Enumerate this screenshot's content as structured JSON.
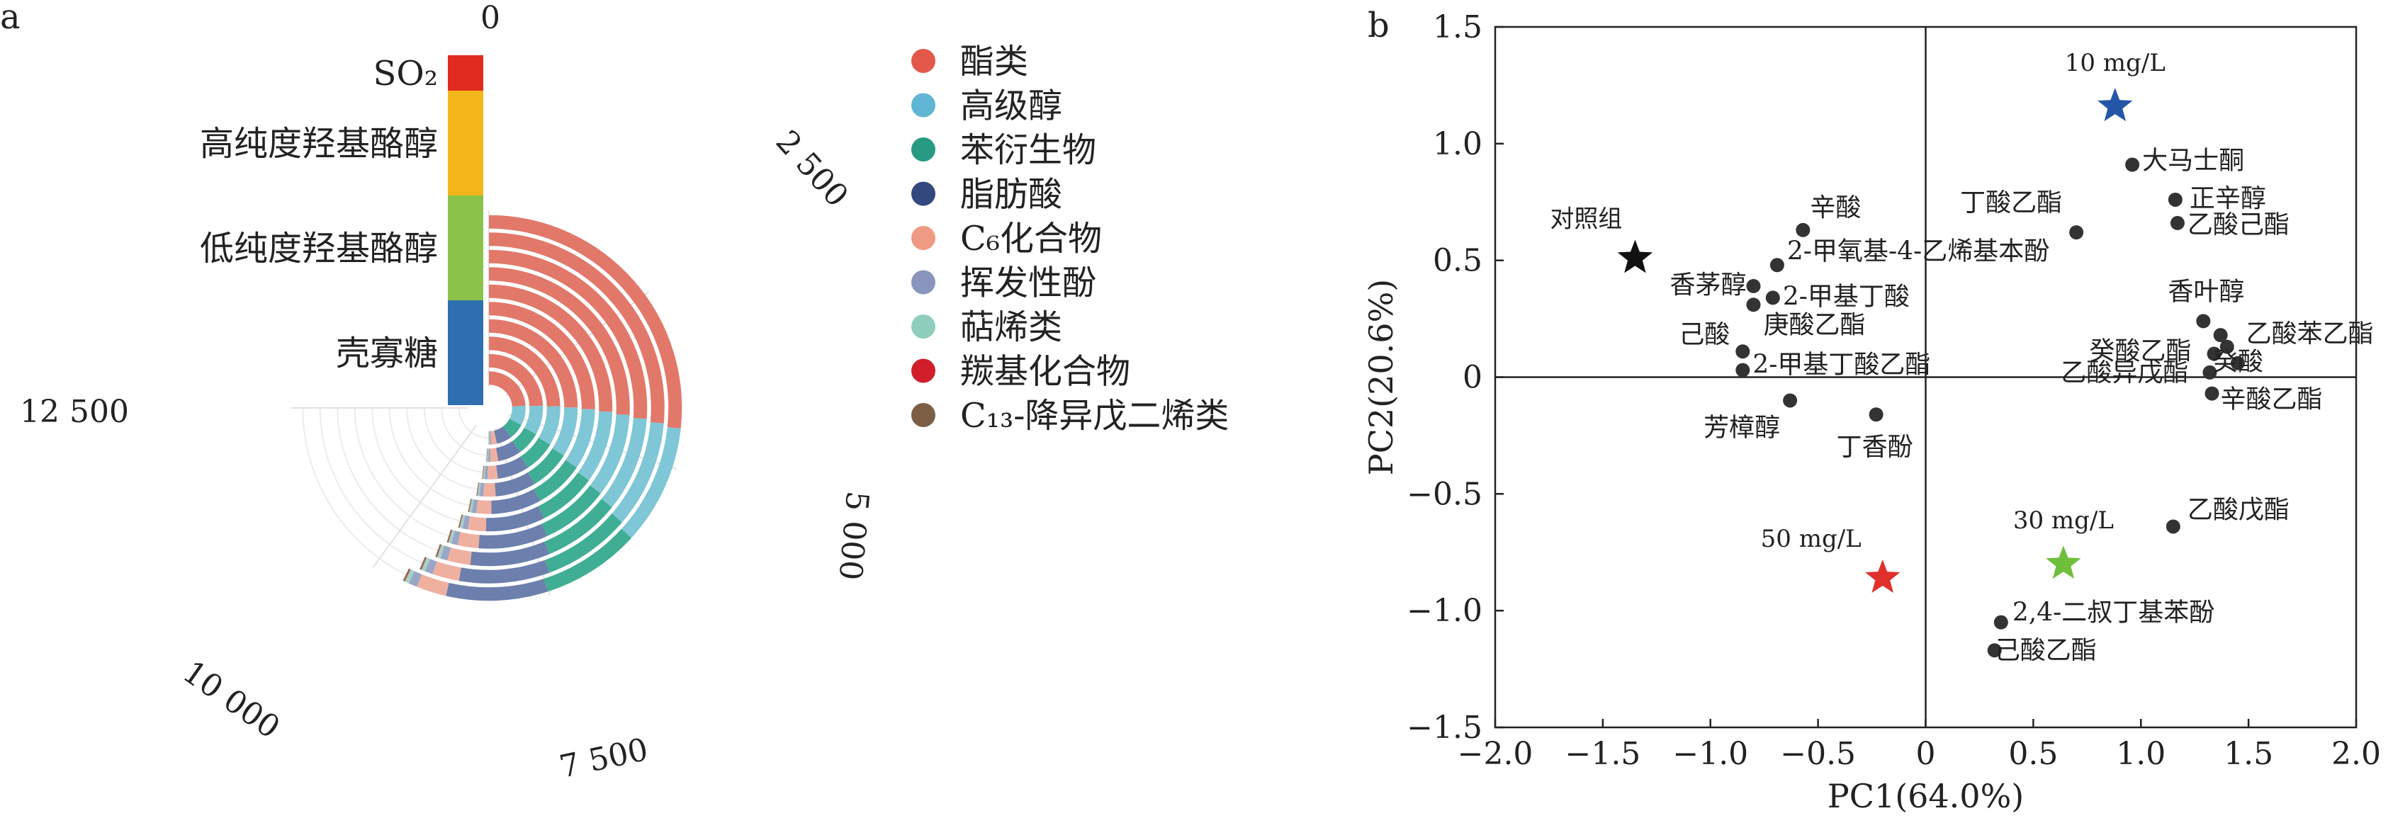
{
  "panels": {
    "a": "a",
    "b": "b"
  },
  "chart_data": [
    {
      "type": "bar",
      "subtype": "radial-stacked-bar",
      "title": "",
      "radial_ticks": [
        "0",
        "2 500",
        "5 000",
        "7 500",
        "10 000",
        "12 500"
      ],
      "value_range": [
        0,
        12500
      ],
      "groups": [
        {
          "name": "SO₂",
          "color": "#e02b20",
          "rings": 1
        },
        {
          "name": "高纯度羟基酪醇",
          "color": "#f4b71b",
          "rings": 3
        },
        {
          "name": "低纯度羟基酪醇",
          "color": "#8bc34a",
          "rings": 3
        },
        {
          "name": "壳寡糖",
          "color": "#2e6fb0",
          "rings": 3
        }
      ],
      "series": [
        {
          "name": "酯类",
          "color": "#e2786a",
          "values": [
            4000,
            4050,
            4100,
            4150,
            4200,
            4250,
            4300,
            4350,
            4400,
            4450
          ]
        },
        {
          "name": "高级醇",
          "color": "#7fc6d6",
          "values": [
            1450,
            1470,
            1500,
            1520,
            1550,
            1580,
            1600,
            1620,
            1650,
            1680
          ]
        },
        {
          "name": "苯衍生物",
          "color": "#3fae94",
          "values": [
            1150,
            1170,
            1200,
            1220,
            1250,
            1270,
            1300,
            1320,
            1350,
            1380
          ]
        },
        {
          "name": "脂肪酸",
          "color": "#6c7fad",
          "values": [
            1150,
            1180,
            1200,
            1240,
            1270,
            1300,
            1330,
            1360,
            1390,
            1420
          ]
        },
        {
          "name": "C₆化合物",
          "color": "#f0b0a0",
          "values": [
            400,
            380,
            380,
            370,
            380,
            390,
            400,
            390,
            410,
            420
          ]
        },
        {
          "name": "挥发性酚",
          "color": "#9aa6c6",
          "values": [
            120,
            120,
            120,
            120,
            120,
            120,
            120,
            120,
            120,
            120
          ]
        },
        {
          "name": "萜烯类",
          "color": "#9fd4c6",
          "values": [
            60,
            60,
            60,
            60,
            60,
            60,
            60,
            60,
            60,
            60
          ]
        },
        {
          "name": "羰基化合物",
          "color": "#d9323c",
          "values": [
            10,
            10,
            10,
            10,
            10,
            10,
            10,
            10,
            10,
            10
          ]
        },
        {
          "name": "C₁₃-降异戊二烯类",
          "color": "#8a6a4f",
          "values": [
            20,
            20,
            20,
            20,
            20,
            20,
            20,
            20,
            20,
            20
          ]
        }
      ],
      "legend": [
        {
          "label": "酯类",
          "color": "#e2584a"
        },
        {
          "label": "高级醇",
          "color": "#5fb5d3"
        },
        {
          "label": "苯衍生物",
          "color": "#279a83"
        },
        {
          "label": "脂肪酸",
          "color": "#33487e"
        },
        {
          "label": "C₆化合物",
          "color": "#ef9a82"
        },
        {
          "label": "挥发性酚",
          "color": "#8a95bd"
        },
        {
          "label": "萜烯类",
          "color": "#8fcdbc"
        },
        {
          "label": "羰基化合物",
          "color": "#d01e2a"
        },
        {
          "label": "C₁₃-降异戊二烯类",
          "color": "#7b5e44"
        }
      ],
      "legend_placement": "right"
    },
    {
      "type": "scatter",
      "title": "",
      "xlabel": "PC1(64.0%)",
      "ylabel": "PC2(20.6%)",
      "xlim": [
        -2.0,
        2.0
      ],
      "ylim": [
        -1.5,
        1.5
      ],
      "xticks": [
        "−2.0",
        "−1.5",
        "−1.0",
        "−0.5",
        "0",
        "0.5",
        "1.0",
        "1.5",
        "2.0"
      ],
      "yticks": [
        "−1.5",
        "−1.0",
        "−0.5",
        "0",
        "0.5",
        "1.0",
        "1.5"
      ],
      "grid": false,
      "groups": [
        {
          "label": "对照组",
          "x": -1.35,
          "y": 0.51,
          "color": "#111111"
        },
        {
          "label": "10 mg/L",
          "x": 0.88,
          "y": 1.16,
          "color": "#2456a8"
        },
        {
          "label": "30 mg/L",
          "x": 0.64,
          "y": -0.8,
          "color": "#6fbe3c"
        },
        {
          "label": "50 mg/L",
          "x": -0.2,
          "y": -0.86,
          "color": "#e0302b"
        }
      ],
      "points": [
        {
          "label": "辛酸",
          "x": -0.57,
          "y": 0.63
        },
        {
          "label": "2-甲氧基-4-乙烯基本酚",
          "x": -0.69,
          "y": 0.48
        },
        {
          "label": "香茅醇",
          "x": -0.8,
          "y": 0.39
        },
        {
          "label": "2-甲基丁酸",
          "x": -0.71,
          "y": 0.34
        },
        {
          "label": "庚酸乙酯",
          "x": -0.8,
          "y": 0.31
        },
        {
          "label": "己酸",
          "x": -0.85,
          "y": 0.11
        },
        {
          "label": "2-甲基丁酸乙酯",
          "x": -0.85,
          "y": 0.03
        },
        {
          "label": "芳樟醇",
          "x": -0.63,
          "y": -0.1
        },
        {
          "label": "丁香酚",
          "x": -0.23,
          "y": -0.16
        },
        {
          "label": "丁酸乙酯",
          "x": 0.7,
          "y": 0.62
        },
        {
          "label": "大马士酮",
          "x": 0.96,
          "y": 0.91
        },
        {
          "label": "正辛醇",
          "x": 1.16,
          "y": 0.76
        },
        {
          "label": "乙酸己酯",
          "x": 1.17,
          "y": 0.66
        },
        {
          "label": "香叶醇",
          "x": 1.29,
          "y": 0.24
        },
        {
          "label": "乙酸苯乙酯",
          "x": 1.37,
          "y": 0.18
        },
        {
          "label": "",
          "x": 1.4,
          "y": 0.13
        },
        {
          "label": "癸酸乙酯",
          "x": 1.34,
          "y": 0.1
        },
        {
          "label": "乙酸异戊酯",
          "x": 1.32,
          "y": 0.02
        },
        {
          "label": "癸酸",
          "x": 1.45,
          "y": 0.06
        },
        {
          "label": "辛酸乙酯",
          "x": 1.33,
          "y": -0.07
        },
        {
          "label": "乙酸戊酯",
          "x": 1.15,
          "y": -0.64
        },
        {
          "label": "2,4-二叔丁基苯酚",
          "x": 0.35,
          "y": -1.05
        },
        {
          "label": "己酸乙酯",
          "x": 0.32,
          "y": -1.17
        }
      ]
    }
  ]
}
